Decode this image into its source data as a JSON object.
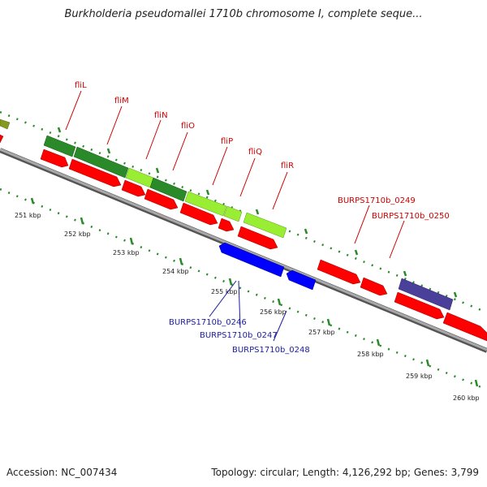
{
  "title": "Burkholderia pseudomallei 1710b chromosome I, complete seque...",
  "footer": {
    "accession": "Accession: NC_007434",
    "summary": "Topology: circular; Length: 4,126,292 bp; Genes: 3,799"
  },
  "colors": {
    "forward_cds": "#ff0000",
    "reverse_cds": "#0000ff",
    "feature_dark_green": "#2a8a2a",
    "feature_light_green": "#99ee33",
    "feature_olive": "#889922",
    "feature_purple": "#4a3f99",
    "backbone": "#8c8c8c",
    "ticks": "#2a8a2a",
    "label_red": "#cc0000",
    "label_blue": "#1c1ca0"
  },
  "scale": {
    "labels": [
      "251 kbp",
      "252 kbp",
      "253 kbp",
      "254 kbp",
      "255 kbp",
      "256 kbp",
      "257 kbp",
      "258 kbp",
      "259 kbp",
      "260 kbp"
    ]
  },
  "gene_labels_top": [
    "fliL",
    "fliM",
    "fliN",
    "fliO",
    "fliP",
    "fliQ",
    "fliR",
    "BURPS1710b_0249",
    "BURPS1710b_0250"
  ],
  "gene_labels_bottom": [
    "BURPS1710b_0246",
    "BURPS1710b_0247",
    "BURPS1710b_0248"
  ]
}
